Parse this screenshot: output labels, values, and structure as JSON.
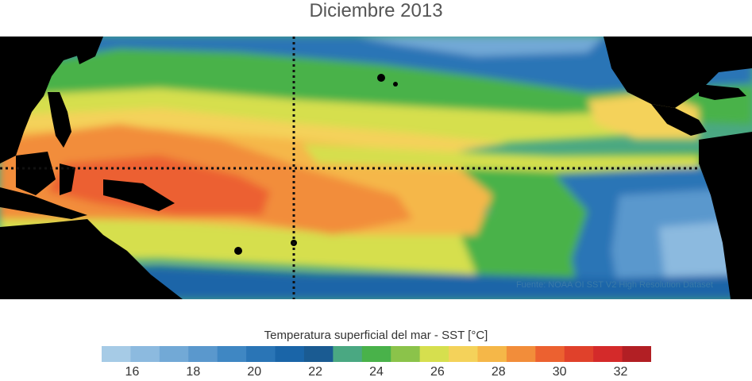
{
  "title": "Diciembre 2013",
  "source_note": "Fuente: NOAA OI SST V2 High Resolution Dataset",
  "colorbar": {
    "label": "Temperatura superficial del mar - SST  [°C]",
    "min": 15,
    "max": 33,
    "colors": [
      "#a6cbe6",
      "#8cbadf",
      "#72a9d6",
      "#5a98cd",
      "#3f87c3",
      "#2a75b6",
      "#1a65a8",
      "#1a5b92",
      "#4aa882",
      "#49b24a",
      "#8bc34a",
      "#d6df4e",
      "#f4d25a",
      "#f5b748",
      "#f28d3a",
      "#ec6130",
      "#e0412b",
      "#d42a2a",
      "#b21f24"
    ],
    "ticks": [
      "16",
      "18",
      "20",
      "22",
      "24",
      "26",
      "28",
      "30",
      "32"
    ]
  }
}
